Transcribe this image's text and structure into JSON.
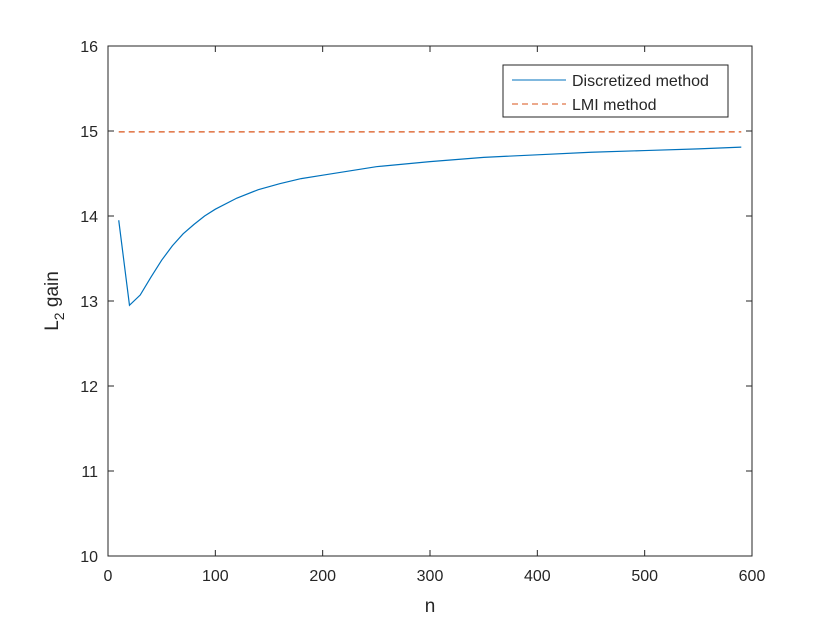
{
  "chart_data": {
    "type": "line",
    "title": "",
    "xlabel": "n",
    "ylabel": {
      "main": "L",
      "subscript": "2",
      "suffix": " gain"
    },
    "xlim": [
      0,
      600
    ],
    "ylim": [
      10,
      16
    ],
    "xticks": [
      0,
      100,
      200,
      300,
      400,
      500,
      600
    ],
    "yticks": [
      10,
      11,
      12,
      13,
      14,
      15,
      16
    ],
    "grid": false,
    "legend_position": "top-right",
    "series": [
      {
        "name": "Discretized method",
        "color": "#0072BD",
        "dash": "solid",
        "x": [
          10,
          20,
          30,
          40,
          50,
          60,
          70,
          80,
          90,
          100,
          120,
          140,
          160,
          180,
          200,
          250,
          300,
          350,
          400,
          450,
          500,
          550,
          590
        ],
        "y": [
          13.95,
          12.95,
          13.07,
          13.28,
          13.48,
          13.65,
          13.79,
          13.9,
          14.0,
          14.08,
          14.21,
          14.31,
          14.38,
          14.44,
          14.48,
          14.58,
          14.64,
          14.69,
          14.72,
          14.75,
          14.77,
          14.79,
          14.81
        ]
      },
      {
        "name": "LMI method",
        "color": "#D95319",
        "dash": "dashed",
        "x": [
          10,
          590
        ],
        "y": [
          14.99,
          14.99
        ]
      }
    ]
  }
}
